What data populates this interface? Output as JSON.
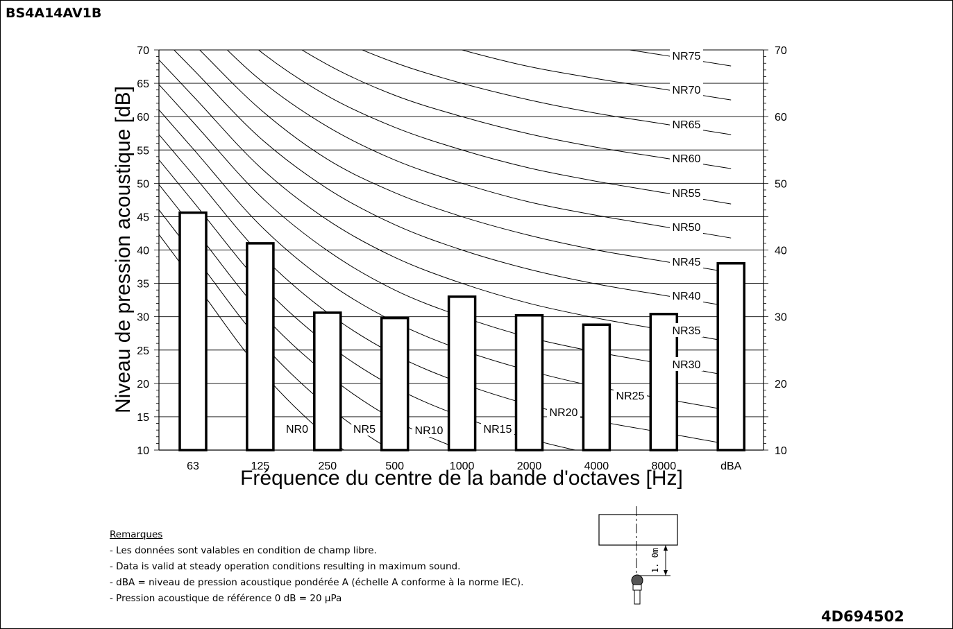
{
  "header": {
    "model_code": "BS4A14AV1B"
  },
  "footer": {
    "document_code": "4D694502"
  },
  "chart_data": {
    "type": "bar",
    "categories": [
      "63",
      "125",
      "250",
      "500",
      "1000",
      "2000",
      "4000",
      "8000",
      "dBA"
    ],
    "values": [
      45.6,
      41.0,
      30.6,
      29.8,
      33.0,
      30.2,
      28.8,
      30.4,
      38.0
    ],
    "ylabel": "Niveau de pression acoustique [dB]",
    "xlabel": "Fréquence du centre de la bande d'octaves [Hz]",
    "ylim": [
      10,
      70
    ],
    "y_ticks_left": [
      "10",
      "15",
      "20",
      "25",
      "30",
      "35",
      "40",
      "45",
      "50",
      "55",
      "60",
      "65",
      "70"
    ],
    "y_ticks_right": [
      "10",
      "20",
      "30",
      "40",
      "50",
      "60",
      "70"
    ],
    "grid": true,
    "nr_curves": [
      {
        "label": "NR0",
        "values": [
          35.5,
          22.0,
          12.0,
          4.8,
          0.0,
          -3.5,
          -6.1,
          -8.0
        ]
      },
      {
        "label": "NR5",
        "values": [
          39.4,
          26.3,
          16.6,
          9.7,
          5.0,
          1.6,
          -1.0,
          -2.8
        ]
      },
      {
        "label": "NR10",
        "values": [
          43.4,
          30.7,
          21.3,
          14.5,
          10.0,
          6.6,
          4.2,
          2.3
        ]
      },
      {
        "label": "NR15",
        "values": [
          47.3,
          35.0,
          25.9,
          19.4,
          15.0,
          11.7,
          9.3,
          7.4
        ]
      },
      {
        "label": "NR20",
        "values": [
          51.3,
          39.4,
          30.6,
          24.3,
          20.0,
          16.8,
          14.4,
          12.6
        ]
      },
      {
        "label": "NR25",
        "values": [
          55.2,
          43.7,
          35.2,
          29.2,
          25.0,
          21.9,
          19.5,
          17.7
        ]
      },
      {
        "label": "NR30",
        "values": [
          59.2,
          48.1,
          39.9,
          34.0,
          30.0,
          26.9,
          24.7,
          22.9
        ]
      },
      {
        "label": "NR35",
        "values": [
          63.1,
          52.4,
          44.5,
          38.9,
          35.0,
          32.0,
          29.8,
          28.0
        ]
      },
      {
        "label": "NR40",
        "values": [
          67.1,
          56.8,
          49.2,
          43.8,
          40.0,
          37.1,
          34.9,
          33.2
        ]
      },
      {
        "label": "NR45",
        "values": [
          71.0,
          61.1,
          53.6,
          48.6,
          45.0,
          42.2,
          40.0,
          38.3
        ]
      },
      {
        "label": "NR50",
        "values": [
          75.0,
          65.5,
          58.5,
          53.5,
          50.0,
          47.2,
          45.2,
          43.5
        ]
      },
      {
        "label": "NR55",
        "values": [
          79.0,
          69.8,
          63.1,
          58.4,
          55.0,
          52.3,
          50.3,
          48.6
        ]
      },
      {
        "label": "NR60",
        "values": [
          82.9,
          74.2,
          67.8,
          63.2,
          60.0,
          57.4,
          55.4,
          53.8
        ]
      },
      {
        "label": "NR65",
        "values": [
          86.8,
          78.5,
          72.4,
          68.1,
          65.0,
          62.5,
          60.5,
          58.9
        ]
      },
      {
        "label": "NR70",
        "values": [
          90.8,
          82.9,
          77.1,
          73.0,
          70.0,
          67.5,
          65.7,
          64.1
        ]
      },
      {
        "label": "NR75",
        "values": [
          94.7,
          87.2,
          81.7,
          77.9,
          75.0,
          72.6,
          70.8,
          69.2
        ]
      }
    ]
  },
  "notes": {
    "heading": "Remarques",
    "lines": [
      "- Les données sont valables en condition de champ libre.",
      "- Data is valid at steady operation conditions resulting in maximum sound.",
      "- dBA = niveau de pression acoustique pondérée A (échelle A conforme à la norme IEC).",
      "- Pression acoustique de référence 0 dB = 20 µPa"
    ]
  },
  "measurement_diagram": {
    "distance_label": "1. 0m"
  }
}
